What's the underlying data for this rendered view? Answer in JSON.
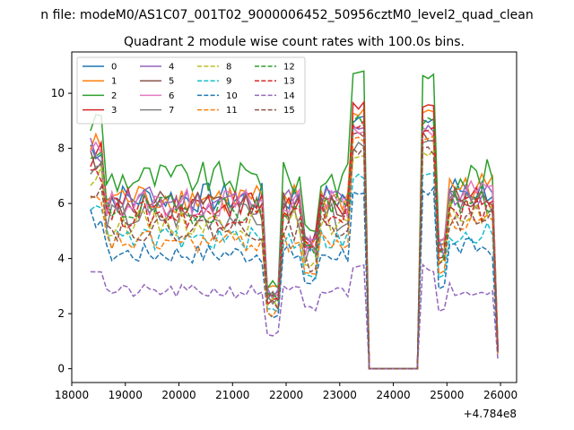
{
  "figure": {
    "suptitle": "n file: modeM0/AS1C07_001T02_9000006452_50956cztM0_level2_quad_clean"
  },
  "chart_data": {
    "type": "line",
    "title": "Quadrant 2 module wise count rates with 100.0s bins.",
    "xlabel": "",
    "ylabel": "",
    "x_offset_label": "+4.784e8",
    "xlim": [
      18000,
      26300
    ],
    "ylim": [
      -0.5,
      11.5
    ],
    "xticks": [
      18000,
      19000,
      20000,
      21000,
      22000,
      23000,
      24000,
      25000,
      26000
    ],
    "yticks": [
      0,
      2,
      4,
      6,
      8,
      10
    ],
    "grid": false,
    "legend": {
      "placement": "top-left",
      "ncol": 4
    },
    "series": [
      {
        "name": "0",
        "color": "#1f77b4",
        "dashed": false,
        "level": 6.2,
        "high": 9.2,
        "late": 6.5
      },
      {
        "name": "1",
        "color": "#ff7f0e",
        "dashed": false,
        "level": 6.2,
        "high": 9.5,
        "late": 6.6
      },
      {
        "name": "2",
        "color": "#2ca02c",
        "dashed": false,
        "level": 6.9,
        "high": 10.9,
        "late": 7.0
      },
      {
        "name": "3",
        "color": "#d62728",
        "dashed": false,
        "level": 6.0,
        "high": 9.8,
        "late": 6.2
      },
      {
        "name": "4",
        "color": "#9467bd",
        "dashed": false,
        "level": 6.1,
        "high": 8.9,
        "late": 6.3
      },
      {
        "name": "5",
        "color": "#8c564b",
        "dashed": false,
        "level": 5.9,
        "high": 8.6,
        "late": 6.3
      },
      {
        "name": "6",
        "color": "#e377c2",
        "dashed": false,
        "level": 6.0,
        "high": 8.8,
        "late": 6.4
      },
      {
        "name": "7",
        "color": "#7f7f7f",
        "dashed": false,
        "level": 5.5,
        "high": 8.3,
        "late": 6.0
      },
      {
        "name": "8",
        "color": "#bcbd22",
        "dashed": true,
        "level": 5.3,
        "high": 8.0,
        "late": 5.6
      },
      {
        "name": "9",
        "color": "#17becf",
        "dashed": true,
        "level": 4.7,
        "high": 7.2,
        "late": 4.9
      },
      {
        "name": "10",
        "color": "#1f77b4",
        "dashed": true,
        "level": 4.2,
        "high": 6.7,
        "late": 4.4
      },
      {
        "name": "11",
        "color": "#ff7f0e",
        "dashed": true,
        "level": 4.6,
        "high": 8.6,
        "late": 5.3
      },
      {
        "name": "12",
        "color": "#2ca02c",
        "dashed": true,
        "level": 5.8,
        "high": 9.2,
        "late": 6.0
      },
      {
        "name": "13",
        "color": "#d62728",
        "dashed": true,
        "level": 5.6,
        "high": 9.0,
        "late": 5.8
      },
      {
        "name": "14",
        "color": "#9467bd",
        "dashed": true,
        "level": 2.8,
        "high": 3.8,
        "late": 2.9
      },
      {
        "name": "15",
        "color": "#8c564b",
        "dashed": true,
        "level": 5.1,
        "high": 8.1,
        "late": 5.4
      }
    ],
    "gap": {
      "start": 23550,
      "end": 24450,
      "value": 0
    },
    "x_start": 18350,
    "x_end": 25950,
    "bin": 100
  }
}
